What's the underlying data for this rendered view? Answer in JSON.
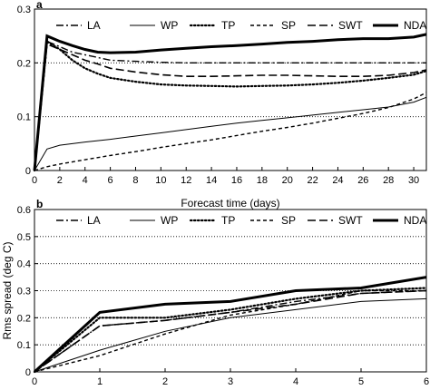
{
  "chart_data": [
    {
      "type": "line",
      "panel_label": "a",
      "xlabel": "Forecast time (days)",
      "ylabel": "",
      "xlim": [
        0,
        31
      ],
      "ylim": [
        0,
        0.3
      ],
      "xticks": [
        0,
        2,
        4,
        6,
        8,
        10,
        12,
        14,
        16,
        18,
        20,
        22,
        24,
        26,
        28,
        30
      ],
      "yticks": [
        0,
        0.1,
        0.2,
        0.3
      ],
      "ytick_labels": [
        "0",
        "0.1",
        "0.2",
        "0.3"
      ],
      "grid": "horizontal dotted",
      "legend_placement": "top",
      "series": [
        {
          "name": "LA",
          "style": "dashdot",
          "x": [
            0,
            1,
            2,
            3,
            4,
            5,
            6,
            8,
            10,
            12,
            14,
            16,
            18,
            20,
            22,
            24,
            26,
            28,
            30,
            31
          ],
          "values": [
            0,
            0.24,
            0.23,
            0.22,
            0.215,
            0.21,
            0.205,
            0.203,
            0.201,
            0.2,
            0.2,
            0.2,
            0.2,
            0.2,
            0.2,
            0.2,
            0.2,
            0.2,
            0.2,
            0.2
          ]
        },
        {
          "name": "WP",
          "style": "thin",
          "x": [
            0,
            1,
            2,
            4,
            6,
            8,
            10,
            12,
            14,
            16,
            18,
            20,
            22,
            24,
            26,
            28,
            30,
            31
          ],
          "values": [
            0,
            0.04,
            0.047,
            0.053,
            0.058,
            0.064,
            0.07,
            0.076,
            0.082,
            0.088,
            0.093,
            0.098,
            0.103,
            0.108,
            0.113,
            0.118,
            0.127,
            0.136
          ]
        },
        {
          "name": "TP",
          "style": "dotted",
          "x": [
            0,
            1,
            2,
            3,
            4,
            5,
            6,
            8,
            10,
            12,
            14,
            16,
            18,
            20,
            22,
            24,
            26,
            28,
            30,
            31
          ],
          "values": [
            0,
            0.24,
            0.225,
            0.205,
            0.19,
            0.18,
            0.172,
            0.165,
            0.16,
            0.158,
            0.157,
            0.156,
            0.157,
            0.158,
            0.16,
            0.163,
            0.167,
            0.172,
            0.178,
            0.185
          ]
        },
        {
          "name": "SP",
          "style": "dashed",
          "x": [
            0,
            1,
            2,
            4,
            6,
            8,
            10,
            12,
            14,
            16,
            18,
            20,
            22,
            24,
            26,
            28,
            30,
            31
          ],
          "values": [
            0,
            0.007,
            0.012,
            0.02,
            0.028,
            0.035,
            0.043,
            0.05,
            0.057,
            0.065,
            0.073,
            0.08,
            0.088,
            0.097,
            0.106,
            0.117,
            0.133,
            0.145
          ]
        },
        {
          "name": "SWT",
          "style": "longdash",
          "x": [
            0,
            1,
            2,
            3,
            4,
            5,
            6,
            8,
            10,
            12,
            14,
            16,
            18,
            20,
            22,
            24,
            26,
            28,
            30,
            31
          ],
          "values": [
            0,
            0.235,
            0.225,
            0.215,
            0.205,
            0.198,
            0.19,
            0.183,
            0.178,
            0.175,
            0.175,
            0.176,
            0.177,
            0.177,
            0.176,
            0.175,
            0.175,
            0.177,
            0.182,
            0.187
          ]
        },
        {
          "name": "NDA",
          "style": "thick",
          "x": [
            0,
            1,
            2,
            3,
            4,
            5,
            6,
            8,
            10,
            12,
            14,
            16,
            18,
            20,
            22,
            24,
            26,
            28,
            30,
            31
          ],
          "values": [
            0,
            0.25,
            0.24,
            0.232,
            0.225,
            0.22,
            0.219,
            0.22,
            0.224,
            0.227,
            0.23,
            0.232,
            0.235,
            0.238,
            0.24,
            0.243,
            0.245,
            0.245,
            0.248,
            0.253
          ]
        }
      ]
    },
    {
      "type": "line",
      "panel_label": "b",
      "xlabel": "",
      "ylabel": "Rms spread (deg C)",
      "xlim": [
        0,
        6
      ],
      "ylim": [
        0,
        0.6
      ],
      "xticks": [
        0,
        1,
        2,
        3,
        4,
        5,
        6
      ],
      "yticks": [
        0,
        0.1,
        0.2,
        0.3,
        0.4,
        0.5,
        0.6
      ],
      "ytick_labels": [
        "0",
        "0.1",
        "0.2",
        "0.3",
        "0.4",
        "0.5",
        "0.6"
      ],
      "grid": "horizontal dotted",
      "legend_placement": "top",
      "series": [
        {
          "name": "LA",
          "style": "dashdot",
          "x": [
            0,
            1,
            2,
            3,
            4,
            5,
            6
          ],
          "values": [
            0,
            0.17,
            0.19,
            0.22,
            0.26,
            0.29,
            0.3
          ]
        },
        {
          "name": "WP",
          "style": "thin",
          "x": [
            0,
            1,
            2,
            3,
            4,
            5,
            6
          ],
          "values": [
            0,
            0.08,
            0.15,
            0.2,
            0.23,
            0.26,
            0.27
          ]
        },
        {
          "name": "TP",
          "style": "dotted",
          "x": [
            0,
            1,
            2,
            3,
            4,
            5,
            6
          ],
          "values": [
            0,
            0.2,
            0.2,
            0.23,
            0.27,
            0.3,
            0.31
          ]
        },
        {
          "name": "SP",
          "style": "dashed",
          "x": [
            0,
            1,
            2,
            3,
            4,
            5,
            6
          ],
          "values": [
            0,
            0.06,
            0.14,
            0.21,
            0.25,
            0.3,
            0.3
          ]
        },
        {
          "name": "SWT",
          "style": "longdash",
          "x": [
            0,
            1,
            2,
            3,
            4,
            5,
            6
          ],
          "values": [
            0,
            0.17,
            0.19,
            0.22,
            0.25,
            0.29,
            0.3
          ]
        },
        {
          "name": "NDA",
          "style": "thick",
          "x": [
            0,
            1,
            2,
            3,
            4,
            5,
            6
          ],
          "values": [
            0,
            0.22,
            0.25,
            0.26,
            0.3,
            0.31,
            0.35
          ]
        }
      ]
    }
  ]
}
